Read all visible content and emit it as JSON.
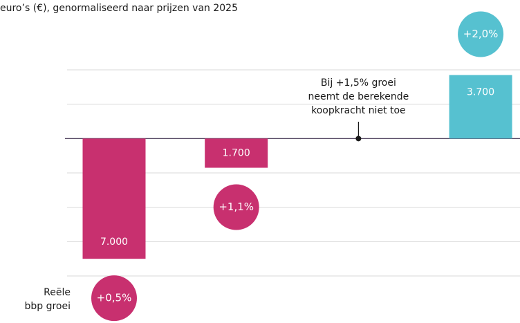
{
  "chart_data": {
    "type": "bar",
    "subtitle": "euro’s (€),  genormaliseerd naar prijzen van 2025",
    "category_axis_label": [
      "Reële",
      "bbp groei"
    ],
    "categories": [
      "+0,5%",
      "+1,1%",
      null,
      "+2,0%"
    ],
    "values": [
      -7000,
      -1700,
      0,
      3700
    ],
    "value_labels": [
      "7.000",
      "1.700",
      null,
      "3.700"
    ],
    "annotation": [
      "Bij +1,5% groei",
      "neemt de berekende",
      "koopkracht niet toe"
    ],
    "negative_color": "#c8306f",
    "positive_color": "#56c1d0",
    "ylim": [
      -8000,
      4000
    ],
    "yticks": [
      -8000,
      -6000,
      -4000,
      -2000,
      0,
      2000,
      4000
    ],
    "grid": true
  }
}
